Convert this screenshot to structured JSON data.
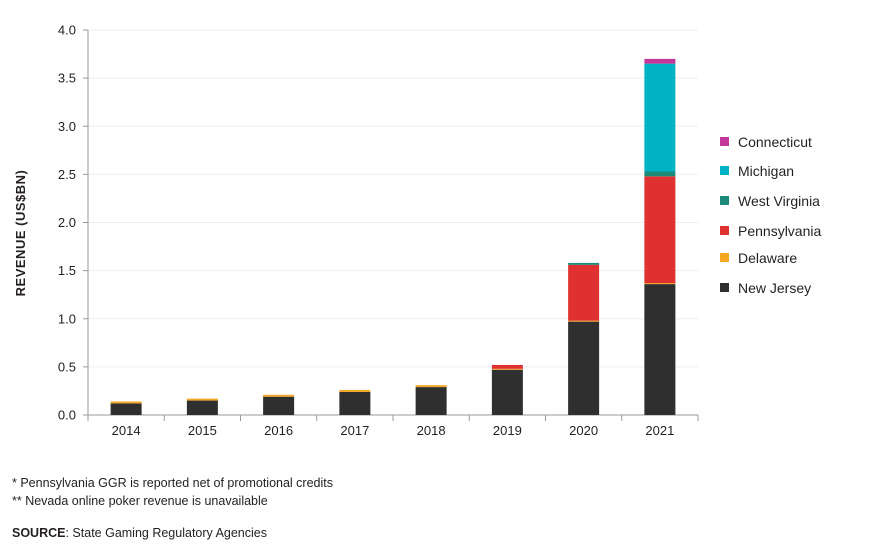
{
  "chart_data": {
    "type": "bar",
    "stacked": true,
    "categories": [
      "2014",
      "2015",
      "2016",
      "2017",
      "2018",
      "2019",
      "2020",
      "2021"
    ],
    "series": [
      {
        "name": "New Jersey",
        "color": "#2f2f2f",
        "values": [
          0.12,
          0.15,
          0.19,
          0.24,
          0.29,
          0.47,
          0.97,
          1.36
        ]
      },
      {
        "name": "Delaware",
        "color": "#f5a623",
        "values": [
          0.02,
          0.02,
          0.02,
          0.02,
          0.02,
          0.01,
          0.01,
          0.01
        ]
      },
      {
        "name": "Pennsylvania",
        "color": "#e03131",
        "values": [
          0,
          0,
          0,
          0,
          0,
          0.04,
          0.58,
          1.11
        ]
      },
      {
        "name": "West Virginia",
        "color": "#1b8a7a",
        "values": [
          0,
          0,
          0,
          0,
          0,
          0,
          0.02,
          0.05
        ]
      },
      {
        "name": "Michigan",
        "color": "#00b3c4",
        "values": [
          0,
          0,
          0,
          0,
          0,
          0,
          0,
          1.12
        ]
      },
      {
        "name": "Connecticut",
        "color": "#c2389a",
        "values": [
          0,
          0,
          0,
          0,
          0,
          0,
          0,
          0.05
        ]
      }
    ],
    "yticks": [
      "0.0",
      "0.5",
      "1.0",
      "1.5",
      "2.0",
      "2.5",
      "3.0",
      "3.5",
      "4.0"
    ],
    "ylim": [
      0,
      4.0
    ],
    "ylabel": "REVENUE (US$BN)",
    "xlabel": "",
    "title": "",
    "grid": true,
    "legend_position": "right"
  },
  "notes": {
    "line1": "* Pennsylvania GGR is reported net of promotional credits",
    "line2": "** Nevada online poker revenue is unavailable"
  },
  "source": {
    "label": "SOURCE",
    "text": ": State Gaming Regulatory Agencies"
  }
}
